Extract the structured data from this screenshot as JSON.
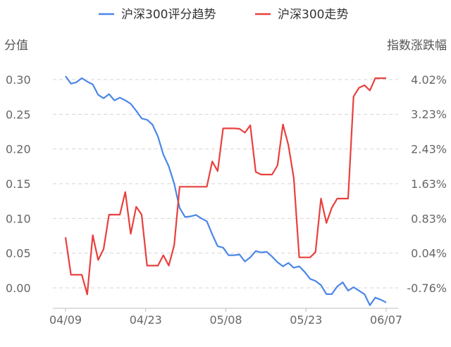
{
  "chart_data": {
    "type": "line",
    "legend_position": "top-center",
    "grid": true,
    "y_left": {
      "label": "分值",
      "range": [
        -0.03,
        0.33
      ],
      "ticks": [
        "0.30",
        "0.25",
        "0.20",
        "0.15",
        "0.10",
        "0.05",
        "0.00"
      ],
      "tick_values": [
        0.3,
        0.25,
        0.2,
        0.15,
        0.1,
        0.05,
        0.0
      ]
    },
    "y_right": {
      "label": "指数涨跌幅",
      "range": [
        -1.3,
        4.5
      ],
      "ticks": [
        "4.02%",
        "3.23%",
        "2.43%",
        "1.63%",
        "0.83%",
        "0.04%",
        "-0.76%"
      ],
      "tick_values": [
        4.02,
        3.23,
        2.43,
        1.63,
        0.83,
        0.04,
        -0.76
      ]
    },
    "x_labels": [
      "04/09",
      "04/23",
      "05/08",
      "05/23",
      "06/07"
    ],
    "x_label_positions": [
      0,
      10,
      20,
      30,
      40
    ],
    "series": [
      {
        "name": "沪深300评分趋势",
        "color": "#4a86e8",
        "axis": "left",
        "values": [
          0.305,
          0.294,
          0.296,
          0.302,
          0.297,
          0.293,
          0.278,
          0.273,
          0.279,
          0.27,
          0.274,
          0.27,
          0.265,
          0.255,
          0.244,
          0.242,
          0.235,
          0.218,
          0.192,
          0.175,
          0.15,
          0.115,
          0.102,
          0.103,
          0.105,
          0.1,
          0.096,
          0.077,
          0.06,
          0.058,
          0.047,
          0.047,
          0.048,
          0.038,
          0.044,
          0.053,
          0.051,
          0.052,
          0.045,
          0.037,
          0.031,
          0.036,
          0.029,
          0.031,
          0.023,
          0.013,
          0.01,
          0.004,
          -0.009,
          -0.009,
          0.002,
          0.008,
          -0.004,
          0.001,
          -0.004,
          -0.009,
          -0.025,
          -0.014,
          -0.017,
          -0.021
        ]
      },
      {
        "name": "沪深300走势",
        "color": "#e8403d",
        "axis": "right",
        "values": [
          0.4,
          -0.46,
          -0.46,
          -0.46,
          -0.91,
          0.45,
          -0.12,
          0.13,
          0.92,
          0.92,
          0.92,
          1.44,
          0.48,
          1.1,
          0.92,
          -0.25,
          -0.25,
          -0.25,
          -0.01,
          -0.25,
          0.22,
          1.56,
          1.56,
          1.56,
          1.56,
          1.56,
          1.56,
          2.14,
          1.92,
          2.9,
          2.9,
          2.9,
          2.89,
          2.8,
          2.97,
          1.9,
          1.84,
          1.84,
          1.84,
          2.05,
          2.99,
          2.52,
          1.76,
          -0.06,
          -0.06,
          -0.06,
          0.06,
          1.29,
          0.73,
          1.08,
          1.29,
          1.29,
          1.29,
          3.63,
          3.83,
          3.89,
          3.77,
          4.05,
          4.05,
          4.05
        ]
      }
    ]
  }
}
